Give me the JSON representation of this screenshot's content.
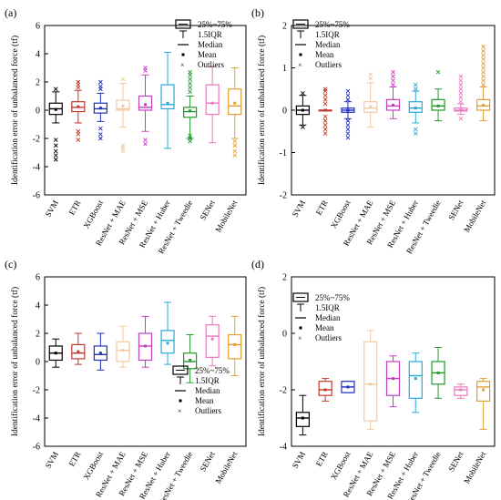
{
  "legend": {
    "box": "25%~75%",
    "whisker": "1.5IQR",
    "median": "Median",
    "mean": "Mean",
    "outliers": "Outliers"
  },
  "categories": [
    "SVM",
    "ETR",
    "XGBoost",
    "ResNet + MAE",
    "ResNet + MSE",
    "ResNet + Huber",
    "ResNet + Tweedie",
    "SENet",
    "MobileNet"
  ],
  "colors": [
    "#000000",
    "#c0392b",
    "#1f2fbf",
    "#f2c9a0",
    "#c040c0",
    "#29a9d6",
    "#1f9a2a",
    "#e878c0",
    "#e0a030"
  ],
  "chart_data": [
    {
      "panel": "(a)",
      "type": "box",
      "ylabel": "Identification error of unbalanced force (tf)",
      "ylim": [
        -6,
        6
      ],
      "yticks": [
        -6,
        -4,
        -2,
        0,
        2,
        4,
        6
      ],
      "legend_position": "top-right",
      "grid": false,
      "boxes": [
        {
          "category": "SVM",
          "q1": -0.3,
          "median": 0.1,
          "q3": 0.5,
          "whisker_low": -0.9,
          "whisker_high": 1.3,
          "mean": 0.05,
          "outliers": [
            -2.1,
            -2.5,
            -2.9,
            -3.2,
            -3.5,
            1.5
          ]
        },
        {
          "category": "ETR",
          "q1": -0.1,
          "median": 0.2,
          "q3": 0.6,
          "whisker_low": -0.9,
          "whisker_high": 1.4,
          "mean": 0.25,
          "outliers": [
            1.6,
            1.8,
            2.0,
            -1.5,
            -1.7,
            -2.1
          ]
        },
        {
          "category": "XGBoost",
          "q1": -0.2,
          "median": 0.1,
          "q3": 0.5,
          "whisker_low": -0.8,
          "whisker_high": 1.2,
          "mean": 0.15,
          "outliers": [
            1.5,
            1.7,
            2.0,
            -1.3,
            -1.7,
            -2.0
          ]
        },
        {
          "category": "ResNet + MAE",
          "q1": 0.0,
          "median": 0.1,
          "q3": 0.7,
          "whisker_low": -1.2,
          "whisker_high": 1.9,
          "mean": 0.3,
          "outliers": [
            -2.5,
            -2.7,
            -2.9,
            2.2
          ]
        },
        {
          "category": "ResNet + MSE",
          "q1": 0.0,
          "median": 0.2,
          "q3": 1.0,
          "whisker_low": -1.5,
          "whisker_high": 2.5,
          "mean": 0.4,
          "outliers": [
            2.8,
            3.0,
            -2.1,
            -2.4
          ]
        },
        {
          "category": "ResNet + Huber",
          "q1": 0.1,
          "median": 0.4,
          "q3": 1.8,
          "whisker_low": -2.7,
          "whisker_high": 4.1,
          "mean": 0.5,
          "outliers": []
        },
        {
          "category": "ResNet + Tweedie",
          "q1": -0.5,
          "median": -0.1,
          "q3": 0.2,
          "whisker_low": -2.0,
          "whisker_high": 1.0,
          "mean": -0.05,
          "outliers": [
            1.3,
            1.6,
            1.9,
            2.2,
            2.5,
            2.7,
            -2.2,
            -2.0,
            -1.8
          ]
        },
        {
          "category": "SENet",
          "q1": -0.3,
          "median": 0.5,
          "q3": 1.8,
          "whisker_low": -2.3,
          "whisker_high": 3.1,
          "mean": 0.5,
          "outliers": []
        },
        {
          "category": "MobileNet",
          "q1": -0.3,
          "median": 0.3,
          "q3": 1.5,
          "whisker_low": -2.0,
          "whisker_high": 3.0,
          "mean": 0.5,
          "outliers": [
            -2.2,
            -2.5,
            -2.9,
            -3.2
          ]
        }
      ]
    },
    {
      "panel": "(b)",
      "type": "box",
      "ylabel": "Identification error of unbalanced force (tf)",
      "ylim": [
        -2,
        2
      ],
      "yticks": [
        -2,
        -1,
        0,
        1,
        2
      ],
      "legend_position": "top-center",
      "grid": false,
      "boxes": [
        {
          "category": "SVM",
          "q1": -0.1,
          "median": 0.0,
          "q3": 0.1,
          "whisker_low": -0.35,
          "whisker_high": 0.35,
          "mean": 0.0,
          "outliers": [
            -0.4,
            0.4
          ]
        },
        {
          "category": "ETR",
          "q1": 0.0,
          "median": 0.0,
          "q3": 0.0,
          "whisker_low": 0.0,
          "whisker_high": 0.0,
          "mean": 0.0,
          "outliers": [
            -0.55,
            -0.45,
            -0.35,
            -0.25,
            -0.15,
            0.15,
            0.25,
            0.35,
            0.45,
            0.5
          ]
        },
        {
          "category": "XGBoost",
          "q1": -0.05,
          "median": 0.0,
          "q3": 0.05,
          "whisker_low": -0.2,
          "whisker_high": 0.2,
          "mean": 0.0,
          "outliers": [
            -0.65,
            -0.55,
            -0.45,
            -0.35,
            -0.25,
            0.25,
            0.35,
            0.45
          ]
        },
        {
          "category": "ResNet + MAE",
          "q1": -0.05,
          "median": 0.05,
          "q3": 0.2,
          "whisker_low": -0.4,
          "whisker_high": 0.65,
          "mean": 0.08,
          "outliers": [
            0.75,
            0.85
          ]
        },
        {
          "category": "ResNet + MSE",
          "q1": 0.0,
          "median": 0.1,
          "q3": 0.25,
          "whisker_low": -0.2,
          "whisker_high": 0.55,
          "mean": 0.12,
          "outliers": [
            0.6,
            0.7,
            0.8,
            0.9
          ]
        },
        {
          "category": "ResNet + Huber",
          "q1": -0.05,
          "median": 0.05,
          "q3": 0.2,
          "whisker_low": -0.3,
          "whisker_high": 0.45,
          "mean": 0.05,
          "outliers": [
            -0.55,
            -0.45,
            0.5,
            0.6
          ]
        },
        {
          "category": "ResNet + Tweedie",
          "q1": 0.0,
          "median": 0.1,
          "q3": 0.25,
          "whisker_low": -0.25,
          "whisker_high": 0.5,
          "mean": 0.1,
          "outliers": [
            0.9
          ]
        },
        {
          "category": "SENet",
          "q1": -0.02,
          "median": 0.0,
          "q3": 0.05,
          "whisker_low": -0.1,
          "whisker_high": 0.15,
          "mean": 0.0,
          "outliers": [
            -0.2,
            0.2,
            0.3,
            0.4,
            0.5,
            0.6,
            0.7,
            0.8
          ]
        },
        {
          "category": "MobileNet",
          "q1": 0.0,
          "median": 0.1,
          "q3": 0.25,
          "whisker_low": -0.25,
          "whisker_high": 0.55,
          "mean": 0.12,
          "outliers": [
            0.6,
            0.7,
            0.8,
            0.9,
            1.0,
            1.1,
            1.2,
            1.3,
            1.4,
            1.5
          ]
        }
      ]
    },
    {
      "panel": "(c)",
      "type": "box",
      "ylabel": "Identification error of unbalanced force (tf)",
      "ylim": [
        -6,
        6
      ],
      "yticks": [
        -6,
        -4,
        -2,
        0,
        2,
        4,
        6
      ],
      "legend_position": "bottom-right",
      "grid": false,
      "boxes": [
        {
          "category": "SVM",
          "q1": 0.1,
          "median": 0.6,
          "q3": 1.1,
          "whisker_low": -0.4,
          "whisker_high": 1.6,
          "mean": 0.6,
          "outliers": []
        },
        {
          "category": "ETR",
          "q1": 0.2,
          "median": 0.6,
          "q3": 1.2,
          "whisker_low": -0.2,
          "whisker_high": 2.0,
          "mean": 0.7,
          "outliers": []
        },
        {
          "category": "XGBoost",
          "q1": 0.1,
          "median": 0.5,
          "q3": 1.1,
          "whisker_low": -0.6,
          "whisker_high": 2.0,
          "mean": 0.6,
          "outliers": []
        },
        {
          "category": "ResNet + MAE",
          "q1": 0.0,
          "median": 0.8,
          "q3": 1.4,
          "whisker_low": -0.4,
          "whisker_high": 2.5,
          "mean": 0.8,
          "outliers": []
        },
        {
          "category": "ResNet + MSE",
          "q1": 0.1,
          "median": 1.1,
          "q3": 2.0,
          "whisker_low": -0.4,
          "whisker_high": 3.2,
          "mean": 1.1,
          "outliers": []
        },
        {
          "category": "ResNet + Huber",
          "q1": 0.6,
          "median": 1.5,
          "q3": 2.2,
          "whisker_low": -0.2,
          "whisker_high": 4.2,
          "mean": 1.3,
          "outliers": []
        },
        {
          "category": "ResNet + Tweedie",
          "q1": -0.5,
          "median": 0.0,
          "q3": 0.6,
          "whisker_low": -1.5,
          "whisker_high": 1.9,
          "mean": 0.1,
          "outliers": []
        },
        {
          "category": "SENet",
          "q1": 0.3,
          "median": 1.8,
          "q3": 2.6,
          "whisker_low": -0.3,
          "whisker_high": 3.2,
          "mean": 1.6,
          "outliers": []
        },
        {
          "category": "MobileNet",
          "q1": 0.2,
          "median": 1.2,
          "q3": 1.9,
          "whisker_low": -1.0,
          "whisker_high": 3.2,
          "mean": 1.2,
          "outliers": []
        }
      ]
    },
    {
      "panel": "(d)",
      "type": "box",
      "ylabel": "Identification error of unbalanced force (tf)",
      "ylim": [
        -4,
        2
      ],
      "yticks": [
        -4,
        -2,
        0,
        2
      ],
      "legend_position": "top-left",
      "grid": false,
      "boxes": [
        {
          "category": "SVM",
          "q1": -3.3,
          "median": -3.0,
          "q3": -2.8,
          "whisker_low": -3.6,
          "whisker_high": -2.2,
          "mean": -3.0,
          "outliers": []
        },
        {
          "category": "ETR",
          "q1": -2.2,
          "median": -2.0,
          "q3": -1.7,
          "whisker_low": -2.4,
          "whisker_high": -1.6,
          "mean": -2.0,
          "outliers": []
        },
        {
          "category": "XGBoost",
          "q1": -2.1,
          "median": -1.9,
          "q3": -1.7,
          "whisker_low": -2.1,
          "whisker_high": -1.7,
          "mean": -1.9,
          "outliers": []
        },
        {
          "category": "ResNet + MAE",
          "q1": -3.1,
          "median": -1.8,
          "q3": -0.3,
          "whisker_low": -3.4,
          "whisker_high": 0.1,
          "mean": -1.8,
          "outliers": []
        },
        {
          "category": "ResNet + MSE",
          "q1": -2.2,
          "median": -1.6,
          "q3": -1.0,
          "whisker_low": -2.6,
          "whisker_high": -0.8,
          "mean": -1.6,
          "outliers": []
        },
        {
          "category": "ResNet + Huber",
          "q1": -2.3,
          "median": -1.5,
          "q3": -1.0,
          "whisker_low": -2.8,
          "whisker_high": -0.7,
          "mean": -1.6,
          "outliers": []
        },
        {
          "category": "ResNet + Tweedie",
          "q1": -1.8,
          "median": -1.4,
          "q3": -1.0,
          "whisker_low": -2.3,
          "whisker_high": -0.5,
          "mean": -1.4,
          "outliers": []
        },
        {
          "category": "SENet",
          "q1": -2.2,
          "median": -2.0,
          "q3": -1.9,
          "whisker_low": -2.3,
          "whisker_high": -1.8,
          "mean": -2.0,
          "outliers": []
        },
        {
          "category": "MobileNet",
          "q1": -2.4,
          "median": -1.9,
          "q3": -1.7,
          "whisker_low": -3.4,
          "whisker_high": -1.6,
          "mean": -2.0,
          "outliers": []
        }
      ]
    }
  ]
}
